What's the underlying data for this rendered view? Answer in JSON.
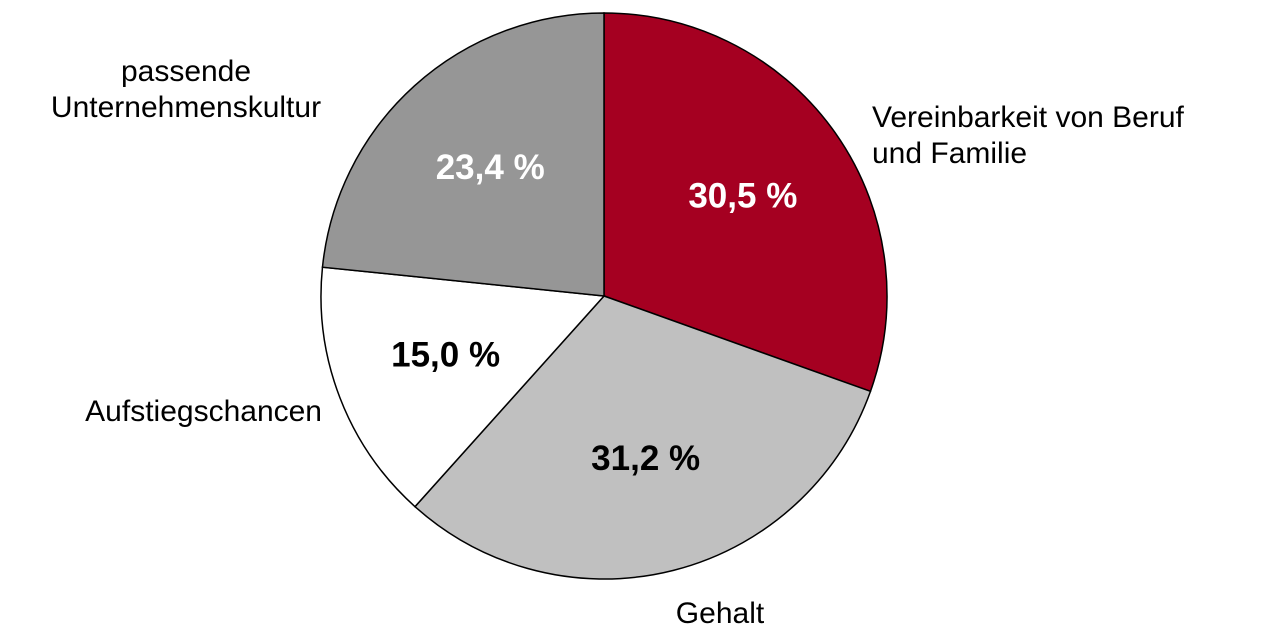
{
  "chart_data": {
    "type": "pie",
    "categories": [
      "Vereinbarkeit von Beruf\nund Familie",
      "Gehalt",
      "Aufstiegschancen",
      "passende\nUnternehmenskultur"
    ],
    "values": [
      30.5,
      31.2,
      15.0,
      23.4
    ],
    "value_labels": [
      "30,5 %",
      "31,2 %",
      "15,0 %",
      "23,4 %"
    ],
    "colors": [
      "#a50021",
      "#c0c0c0",
      "#ffffff",
      "#969696"
    ],
    "label_colors": [
      "#ffffff",
      "#000000",
      "#000000",
      "#ffffff"
    ]
  }
}
